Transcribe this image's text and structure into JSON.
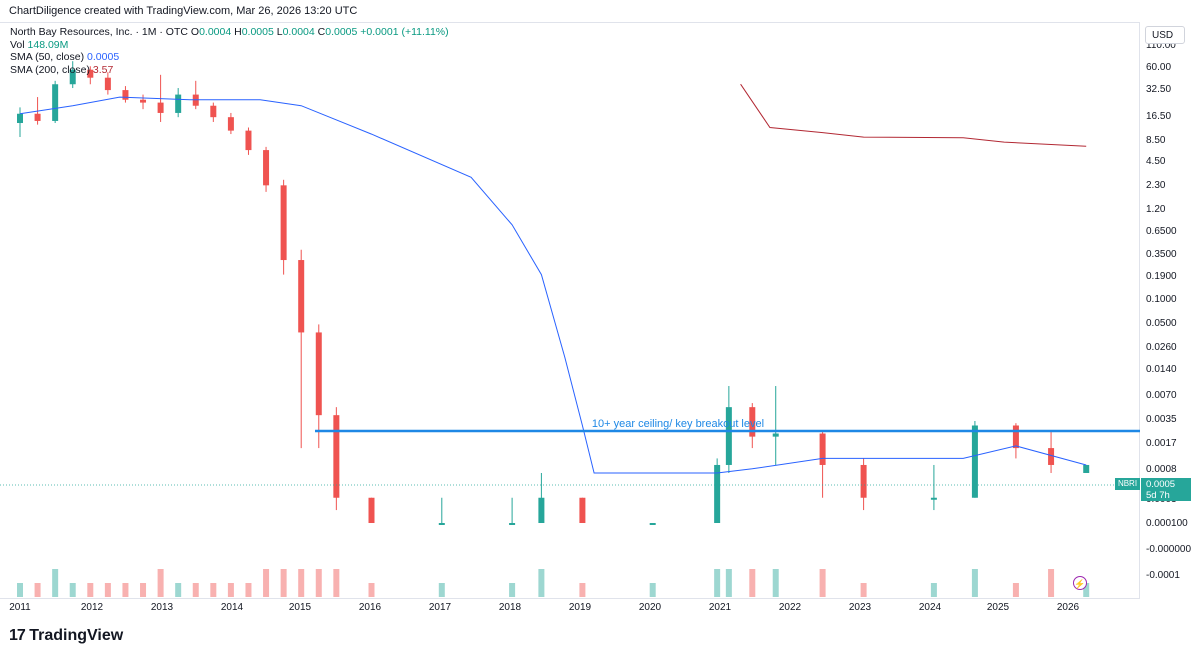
{
  "header": {
    "credit": "ChartDiligence created with TradingView.com, Mar 26, 2026 13:20 UTC"
  },
  "legend": {
    "symbol_line": "North Bay Resources, Inc. · 1M · OTC",
    "ohlc": {
      "o_label": "O",
      "o_value": "0.0004",
      "h_label": "H",
      "h_value": "0.0005",
      "l_label": "L",
      "l_value": "0.0004",
      "c_label": "C",
      "c_value": "0.0005",
      "change": "+0.0001 (+11.11%)"
    },
    "vol_label": "Vol",
    "vol_value": "148.09M",
    "sma50_label": "SMA (50, close)",
    "sma50_value": "0.0005",
    "sma200_label": "SMA (200, close)",
    "sma200_value": "3.57"
  },
  "price_axis": {
    "currency": "USD",
    "last_price": "0.0005",
    "countdown": "5d 7h",
    "ticker": "NBRI"
  },
  "footer": {
    "brand": "TradingView"
  },
  "colors": {
    "up": "#26a69a",
    "down": "#ef5350",
    "sma50": "#2962ff",
    "sma200": "#b22833",
    "hline": "#1e88e5"
  },
  "chart_data": {
    "type": "candlestick",
    "title": "North Bay Resources, Inc. · 1M · OTC",
    "y_scale": "log",
    "y_ticks": [
      "110.00",
      "60.00",
      "32.50",
      "16.50",
      "8.50",
      "4.50",
      "2.30",
      "1.20",
      "0.6500",
      "0.3500",
      "0.1900",
      "0.1000",
      "0.0500",
      "0.0260",
      "0.0140",
      "0.0070",
      "0.0035",
      "0.0017",
      "0.0008",
      "0.0003",
      "0.000100",
      "-0.000000",
      "-0.0001"
    ],
    "x_ticks": [
      "2011",
      "2012",
      "2013",
      "2014",
      "2015",
      "2016",
      "2017",
      "2018",
      "2019",
      "2020",
      "2021",
      "2022",
      "2023",
      "2024",
      "2025",
      "2026"
    ],
    "annotation": {
      "text": "10+ year ceiling/ key breakout level"
    },
    "ohlc_points": [
      {
        "x": "2011-01",
        "o": 6.8,
        "h": 10.5,
        "l": 4.6,
        "c": 8.8
      },
      {
        "x": "2011-04",
        "o": 8.8,
        "h": 14,
        "l": 6.5,
        "c": 7.2
      },
      {
        "x": "2011-07",
        "o": 7.2,
        "h": 22,
        "l": 6.8,
        "c": 20
      },
      {
        "x": "2011-10",
        "o": 20,
        "h": 38,
        "l": 18,
        "c": 30
      },
      {
        "x": "2012-01",
        "o": 30,
        "h": 33,
        "l": 20,
        "c": 24
      },
      {
        "x": "2012-04",
        "o": 24,
        "h": 28,
        "l": 15,
        "c": 17
      },
      {
        "x": "2012-07",
        "o": 17,
        "h": 19,
        "l": 12,
        "c": 13
      },
      {
        "x": "2012-10",
        "o": 13,
        "h": 15,
        "l": 10,
        "c": 12
      },
      {
        "x": "2013-01",
        "o": 12,
        "h": 26,
        "l": 7,
        "c": 9
      },
      {
        "x": "2013-04",
        "o": 9,
        "h": 18,
        "l": 8,
        "c": 15
      },
      {
        "x": "2013-07",
        "o": 15,
        "h": 22,
        "l": 10,
        "c": 11
      },
      {
        "x": "2013-10",
        "o": 11,
        "h": 12,
        "l": 7,
        "c": 8
      },
      {
        "x": "2014-01",
        "o": 8,
        "h": 9,
        "l": 5,
        "c": 5.5
      },
      {
        "x": "2014-04",
        "o": 5.5,
        "h": 6,
        "l": 2.8,
        "c": 3.2
      },
      {
        "x": "2014-07",
        "o": 3.2,
        "h": 3.5,
        "l": 1.0,
        "c": 1.2
      },
      {
        "x": "2014-10",
        "o": 1.2,
        "h": 1.4,
        "l": 0.1,
        "c": 0.15
      },
      {
        "x": "2015-01",
        "o": 0.15,
        "h": 0.2,
        "l": 0.0008,
        "c": 0.02
      },
      {
        "x": "2015-04",
        "o": 0.02,
        "h": 0.025,
        "l": 0.0008,
        "c": 0.002
      },
      {
        "x": "2015-07",
        "o": 0.002,
        "h": 0.0025,
        "l": 0.0002,
        "c": 0.0003
      },
      {
        "x": "2016-01",
        "o": 0.0003,
        "h": 0.0003,
        "l": 0.0001,
        "c": 0.0001
      },
      {
        "x": "2017-01",
        "o": 0.0001,
        "h": 0.0003,
        "l": 0.0001,
        "c": 0.0001
      },
      {
        "x": "2018-01",
        "o": 0.0001,
        "h": 0.0003,
        "l": 0.0001,
        "c": 0.0001
      },
      {
        "x": "2018-06",
        "o": 0.0001,
        "h": 0.0004,
        "l": 0.0001,
        "c": 0.0003
      },
      {
        "x": "2019-01",
        "o": 0.0003,
        "h": 0.0003,
        "l": 0.0001,
        "c": 0.0001
      },
      {
        "x": "2020-01",
        "o": 0.0001,
        "h": 0.0001,
        "l": 0.0001,
        "c": 0.0001
      },
      {
        "x": "2020-12",
        "o": 0.0001,
        "h": 0.0006,
        "l": 0.0001,
        "c": 0.0005
      },
      {
        "x": "2021-02",
        "o": 0.0005,
        "h": 0.0045,
        "l": 0.0004,
        "c": 0.0025
      },
      {
        "x": "2021-06",
        "o": 0.0025,
        "h": 0.0028,
        "l": 0.0008,
        "c": 0.0011
      },
      {
        "x": "2021-10",
        "o": 0.0011,
        "h": 0.0045,
        "l": 0.0005,
        "c": 0.0012
      },
      {
        "x": "2022-06",
        "o": 0.0012,
        "h": 0.0013,
        "l": 0.0003,
        "c": 0.0005
      },
      {
        "x": "2023-01",
        "o": 0.0005,
        "h": 0.0006,
        "l": 0.0002,
        "c": 0.0003
      },
      {
        "x": "2024-01",
        "o": 0.0003,
        "h": 0.0005,
        "l": 0.0002,
        "c": 0.0003
      },
      {
        "x": "2024-08",
        "o": 0.0003,
        "h": 0.0017,
        "l": 0.0003,
        "c": 0.0015
      },
      {
        "x": "2025-03",
        "o": 0.0015,
        "h": 0.0016,
        "l": 0.0006,
        "c": 0.0008
      },
      {
        "x": "2025-09",
        "o": 0.0008,
        "h": 0.0013,
        "l": 0.0004,
        "c": 0.0005
      },
      {
        "x": "2026-03",
        "o": 0.0004,
        "h": 0.0005,
        "l": 0.0004,
        "c": 0.0005
      }
    ],
    "series": [
      {
        "name": "SMA (50, close)",
        "last": "0.0005"
      },
      {
        "name": "SMA (200, close)",
        "last": "3.57"
      }
    ]
  }
}
